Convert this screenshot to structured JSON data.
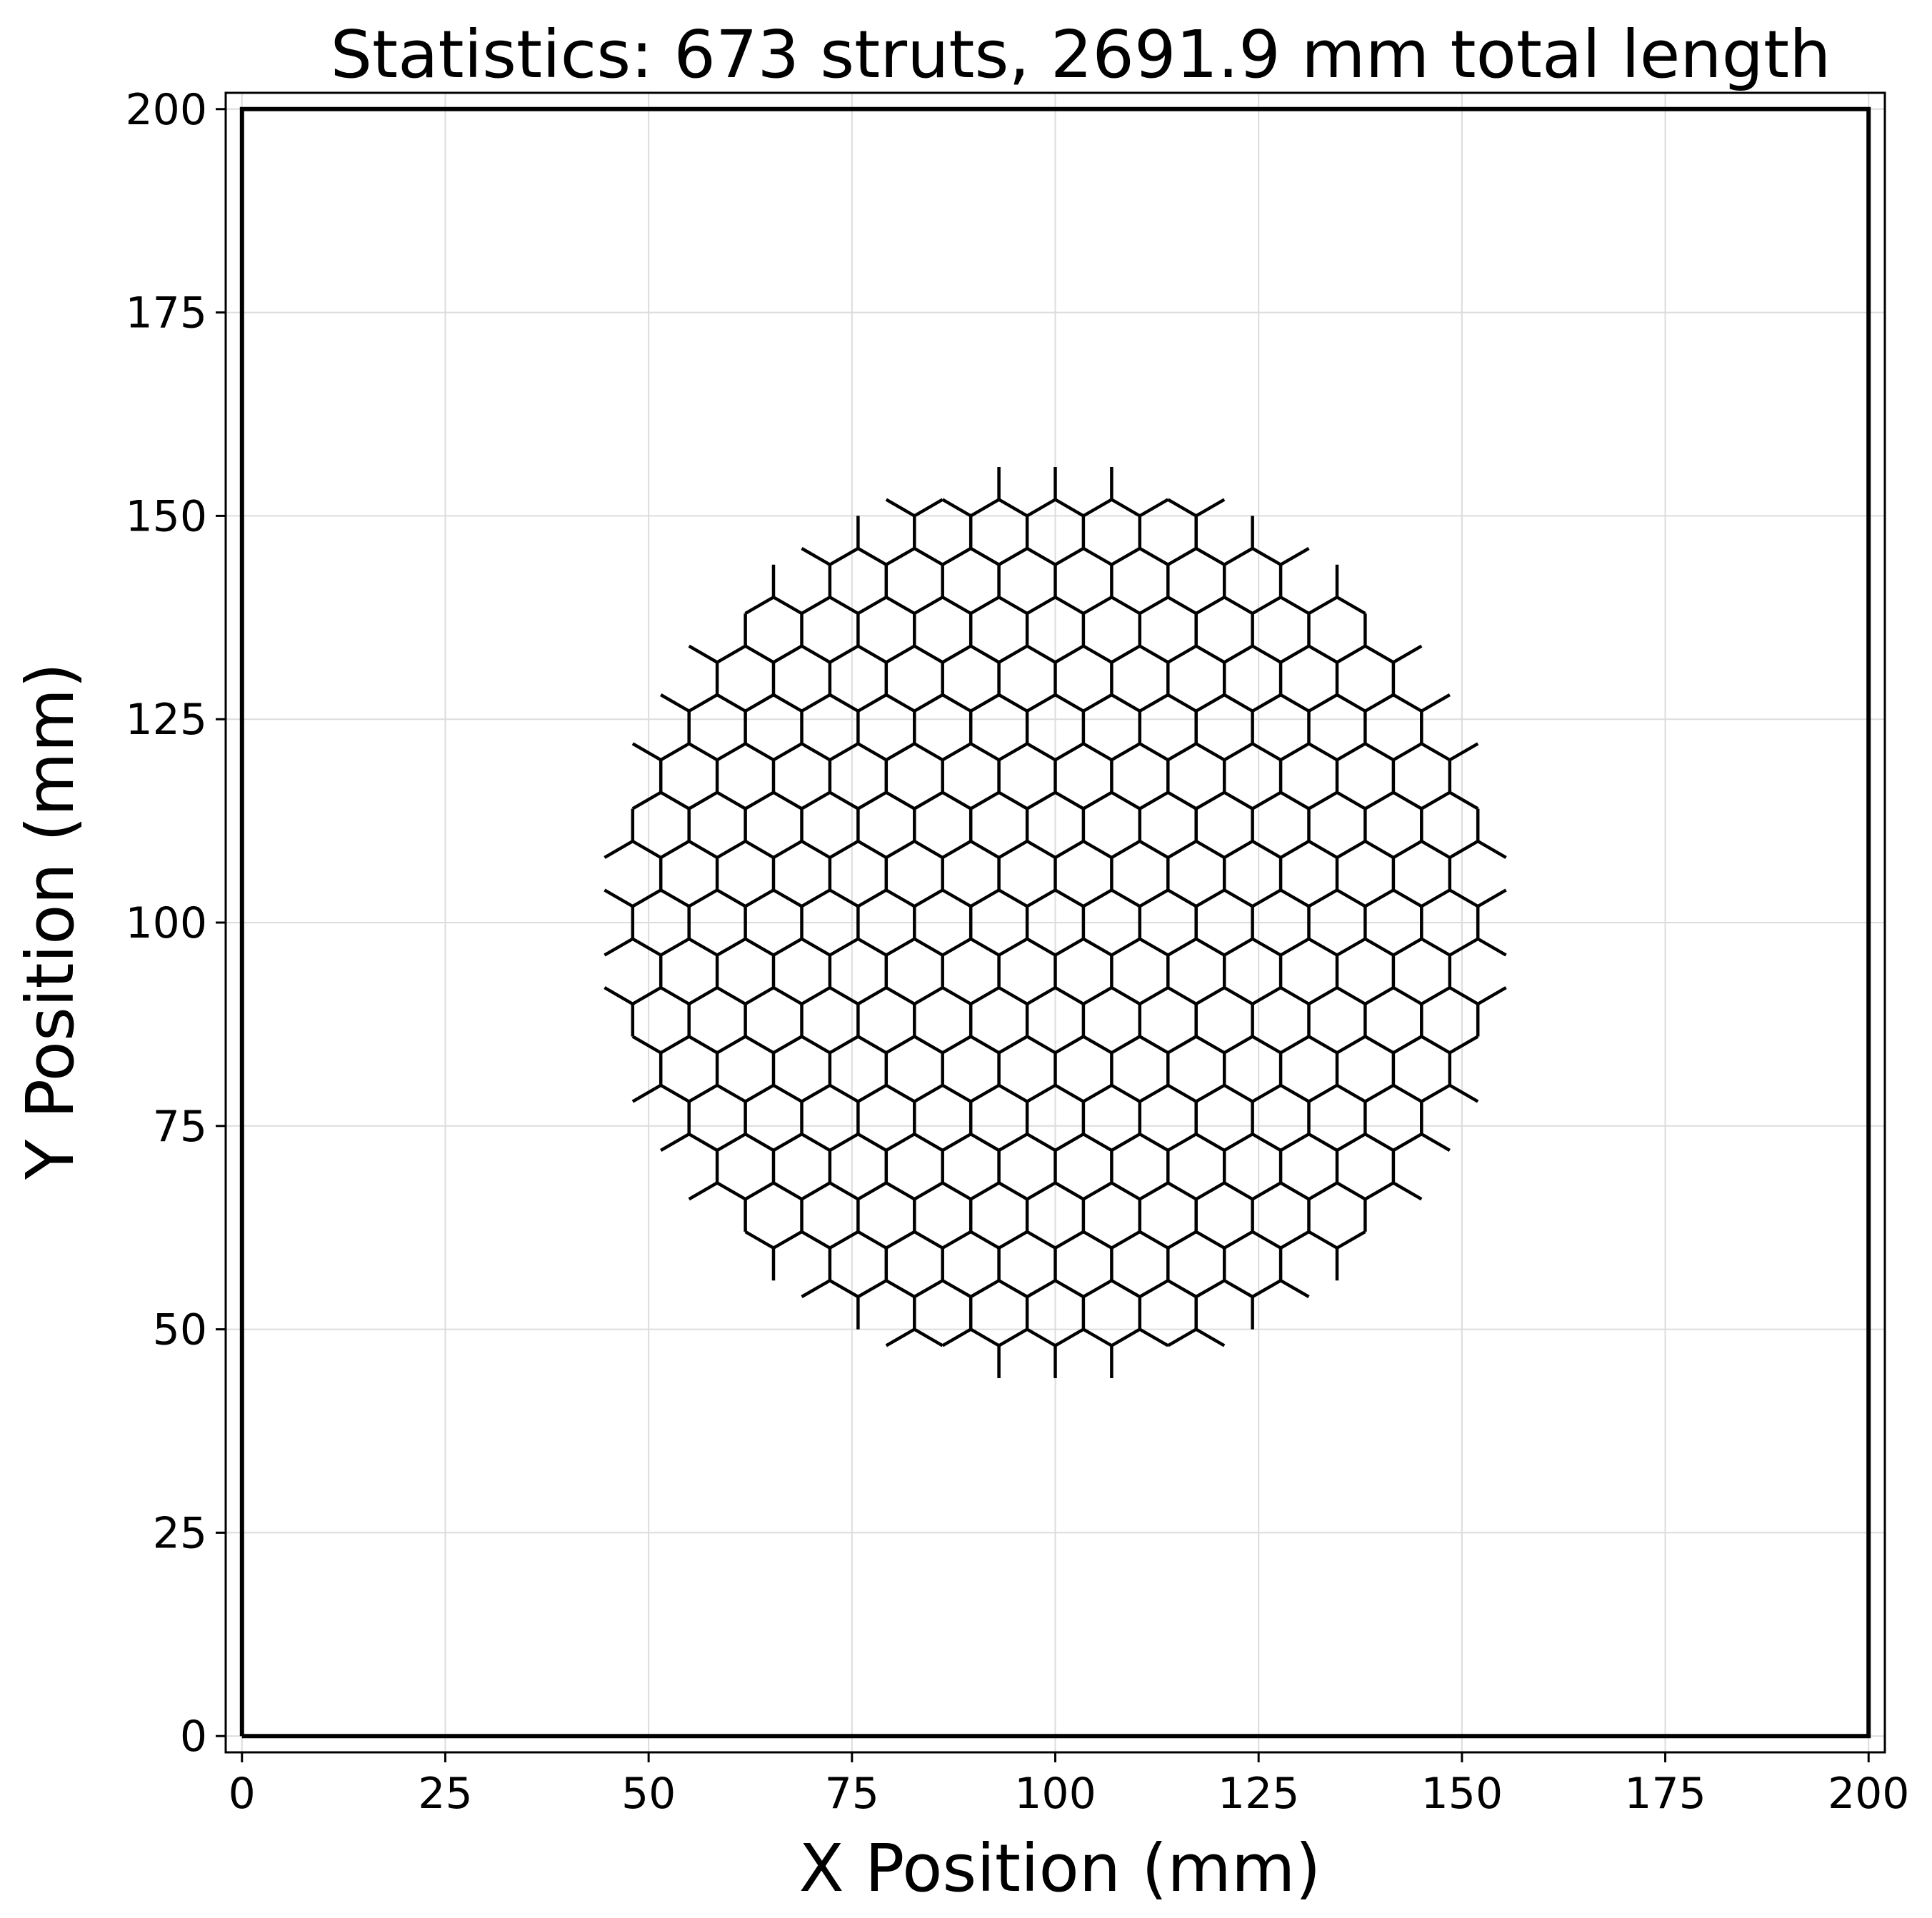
{
  "chart_data": {
    "type": "line",
    "title": "Statistics: 673 struts, 2691.9 mm total length",
    "xlabel": "X Position (mm)",
    "ylabel": "Y Position (mm)",
    "xlim": [
      -2,
      202
    ],
    "ylim": [
      -2,
      202
    ],
    "xticks": [
      0,
      25,
      50,
      75,
      100,
      125,
      150,
      175,
      200
    ],
    "yticks": [
      0,
      25,
      50,
      75,
      100,
      125,
      150,
      175,
      200
    ],
    "grid": true,
    "boundary": {
      "x": [
        0,
        200,
        200,
        0,
        0
      ],
      "y": [
        0,
        0,
        200,
        200,
        0
      ]
    },
    "lattice": {
      "pattern": "hexagonal honeycomb",
      "center": [
        100,
        100
      ],
      "clip_radius": 55,
      "strut_length": 4.0,
      "strut_count": 673,
      "total_length_mm": 2691.9
    },
    "colors": {
      "struts": "#000000",
      "boundary": "#000000",
      "grid": "#dcdcdc"
    }
  }
}
